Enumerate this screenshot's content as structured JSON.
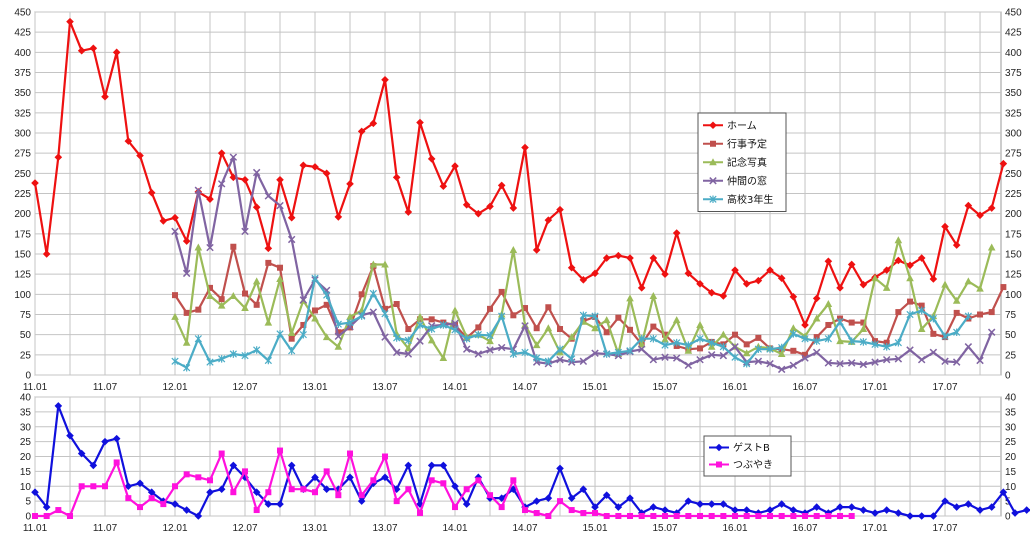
{
  "chart_data": [
    {
      "type": "line",
      "ylim": [
        0,
        450
      ],
      "y_ticks": [
        0,
        25,
        50,
        75,
        100,
        125,
        150,
        175,
        200,
        225,
        250,
        275,
        300,
        325,
        350,
        375,
        400,
        425,
        450
      ],
      "x_tick_labels": [
        "11.01",
        "11.07",
        "12.01",
        "12.07",
        "13.01",
        "13.07",
        "14.01",
        "14.07",
        "15.01",
        "15.07",
        "16.01",
        "16.07",
        "17.01",
        "17.07"
      ],
      "grid": true,
      "legend_position": "right",
      "series": [
        {
          "name": "ホーム",
          "color": "#ee1111",
          "marker": "diamond",
          "start": 0,
          "values": [
            238,
            150,
            270,
            438,
            402,
            405,
            345,
            400,
            290,
            272,
            226,
            191,
            195,
            166,
            227,
            218,
            275,
            245,
            242,
            208,
            157,
            242,
            195,
            260,
            258,
            250,
            196,
            237,
            302,
            312,
            366,
            245,
            202,
            313,
            268,
            234,
            259,
            211,
            200,
            209,
            235,
            207,
            282,
            155,
            192,
            205,
            133,
            118,
            126,
            145,
            148,
            145,
            108,
            145,
            125,
            176,
            126,
            113,
            102,
            98,
            130,
            113,
            117,
            130,
            120,
            97,
            62,
            95,
            141,
            108,
            137,
            112,
            121,
            130,
            142,
            136,
            145,
            119,
            184,
            161,
            210,
            198,
            207,
            262
          ]
        },
        {
          "name": "行事予定",
          "color": "#c0504d",
          "marker": "square",
          "start": 12,
          "values": [
            99,
            77,
            81,
            108,
            94,
            159,
            101,
            87,
            139,
            133,
            45,
            62,
            80,
            87,
            53,
            59,
            100,
            135,
            82,
            88,
            57,
            69,
            69,
            65,
            62,
            46,
            59,
            82,
            103,
            74,
            83,
            58,
            84,
            57,
            45,
            67,
            72,
            53,
            71,
            56,
            38,
            60,
            50,
            36,
            32,
            33,
            41,
            38,
            50,
            38,
            46,
            33,
            32,
            30,
            25,
            47,
            62,
            70,
            65,
            65,
            42,
            40,
            78,
            91,
            86,
            51,
            47,
            77,
            70,
            75,
            78,
            109
          ]
        },
        {
          "name": "記念写真",
          "color": "#9bbb59",
          "marker": "triangle",
          "start": 12,
          "values": [
            72,
            40,
            158,
            98,
            86,
            98,
            83,
            116,
            65,
            119,
            52,
            92,
            70,
            47,
            35,
            72,
            80,
            137,
            137,
            51,
            33,
            72,
            43,
            21,
            80,
            47,
            50,
            42,
            75,
            155,
            62,
            37,
            58,
            28,
            47,
            66,
            58,
            68,
            26,
            95,
            38,
            98,
            44,
            68,
            30,
            62,
            35,
            50,
            35,
            27,
            35,
            33,
            26,
            58,
            48,
            70,
            88,
            42,
            41,
            57,
            120,
            108,
            167,
            120,
            57,
            73,
            112,
            92,
            116,
            107,
            158
          ]
        },
        {
          "name": "仲間の窓",
          "color": "#8064a2",
          "marker": "x",
          "start": 12,
          "values": [
            178,
            126,
            229,
            158,
            237,
            270,
            178,
            251,
            222,
            210,
            168,
            93,
            118,
            105,
            48,
            60,
            74,
            78,
            47,
            28,
            26,
            42,
            61,
            62,
            64,
            32,
            26,
            31,
            34,
            32,
            61,
            16,
            14,
            19,
            16,
            17,
            27,
            26,
            24,
            29,
            32,
            19,
            22,
            21,
            12,
            19,
            25,
            24,
            35,
            16,
            17,
            14,
            7,
            12,
            21,
            28,
            15,
            14,
            15,
            13,
            16,
            19,
            20,
            31,
            19,
            28,
            17,
            16,
            35,
            18,
            53
          ]
        },
        {
          "name": "高校3年生",
          "color": "#4bacc6",
          "marker": "star",
          "start": 12,
          "values": [
            17,
            9,
            45,
            16,
            20,
            26,
            24,
            31,
            18,
            51,
            30,
            50,
            120,
            99,
            63,
            65,
            73,
            101,
            76,
            46,
            43,
            62,
            57,
            62,
            56,
            45,
            50,
            49,
            73,
            26,
            28,
            21,
            17,
            32,
            20,
            74,
            73,
            26,
            28,
            30,
            45,
            45,
            37,
            40,
            37,
            45,
            40,
            35,
            22,
            14,
            32,
            32,
            34,
            51,
            45,
            42,
            45,
            66,
            42,
            41,
            38,
            35,
            40,
            75,
            80,
            70,
            48,
            53,
            73
          ]
        }
      ]
    },
    {
      "type": "line",
      "ylim": [
        0,
        40
      ],
      "y_ticks": [
        0,
        5,
        10,
        15,
        20,
        25,
        30,
        35,
        40
      ],
      "x_tick_labels": [
        "11.01",
        "11.07",
        "12.01",
        "12.07",
        "13.01",
        "13.07",
        "14.01",
        "14.07",
        "15.01",
        "15.07",
        "16.01",
        "16.07",
        "17.01",
        "17.07"
      ],
      "grid": true,
      "legend_position": "right",
      "series": [
        {
          "name": "ゲストB",
          "color": "#1010dd",
          "marker": "diamond",
          "start": 0,
          "values": [
            8,
            3,
            37,
            27,
            21,
            17,
            25,
            26,
            10,
            11,
            8,
            5,
            4,
            2,
            0,
            8,
            9,
            17,
            13,
            8,
            4,
            4,
            17,
            9,
            13,
            9,
            9,
            13,
            5,
            11,
            13,
            9,
            17,
            4,
            17,
            17,
            10,
            4,
            13,
            6,
            6,
            9,
            3,
            5,
            6,
            16,
            6,
            9,
            3,
            7,
            3,
            6,
            1,
            3,
            2,
            1,
            5,
            4,
            4,
            4,
            2,
            2,
            1,
            2,
            4,
            2,
            1,
            3,
            1,
            3,
            3,
            2,
            1,
            2,
            1,
            0,
            0,
            0,
            5,
            3,
            4,
            2,
            3,
            8,
            1,
            2,
            2,
            1,
            1,
            2,
            0,
            2
          ]
        },
        {
          "name": "つぶやき",
          "color": "#ff11dd",
          "marker": "square",
          "start": 0,
          "values": [
            0,
            0,
            2,
            0,
            10,
            10,
            10,
            18,
            6,
            3,
            6,
            4,
            10,
            14,
            13,
            12,
            21,
            8,
            15,
            2,
            8,
            22,
            9,
            9,
            8,
            15,
            7,
            21,
            7,
            12,
            20,
            5,
            9,
            1,
            12,
            11,
            3,
            9,
            12,
            7,
            3,
            12,
            2,
            1,
            0,
            5,
            2,
            1,
            1,
            0,
            0,
            0,
            0,
            0,
            0,
            0,
            0,
            0,
            0,
            0,
            0,
            0,
            0,
            0,
            0,
            0,
            0,
            0,
            0,
            0,
            0
          ]
        }
      ]
    }
  ]
}
